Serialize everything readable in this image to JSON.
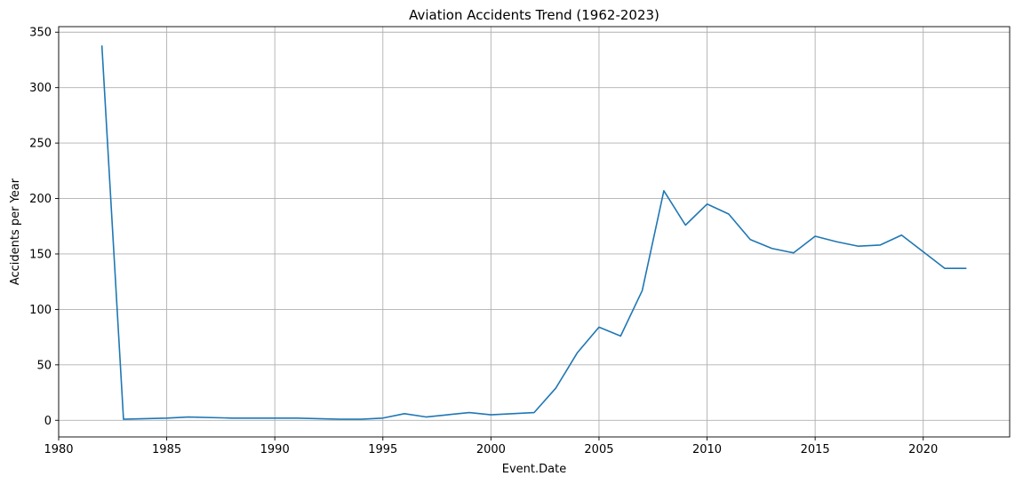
{
  "chart_data": {
    "type": "line",
    "title": "Aviation Accidents Trend (1962-2023)",
    "xlabel": "Event.Date",
    "ylabel": "Accidents per Year",
    "xlim": [
      1980,
      2024
    ],
    "ylim": [
      -15,
      355
    ],
    "xticks": [
      1980,
      1985,
      1990,
      1995,
      2000,
      2005,
      2010,
      2015,
      2020
    ],
    "yticks": [
      0,
      50,
      100,
      150,
      200,
      250,
      300,
      350
    ],
    "grid": true,
    "colors": {
      "line": "#1f77b4",
      "grid": "#b0b0b0",
      "axes": "#000000"
    },
    "series": [
      {
        "x": [
          1982,
          1983,
          1985,
          1986,
          1988,
          1990,
          1991,
          1993,
          1994,
          1995,
          1996,
          1997,
          1998,
          1999,
          2000,
          2001,
          2002,
          2003,
          2004,
          2005,
          2006,
          2007,
          2008,
          2009,
          2010,
          2011,
          2012,
          2013,
          2014,
          2015,
          2016,
          2017,
          2018,
          2019,
          2020,
          2021,
          2022
        ],
        "values": [
          338,
          1,
          2,
          3,
          2,
          2,
          2,
          1,
          1,
          2,
          6,
          3,
          5,
          7,
          5,
          6,
          7,
          29,
          61,
          84,
          76,
          117,
          207,
          176,
          195,
          186,
          163,
          155,
          151,
          166,
          161,
          157,
          158,
          167,
          152,
          137,
          137
        ]
      }
    ]
  }
}
